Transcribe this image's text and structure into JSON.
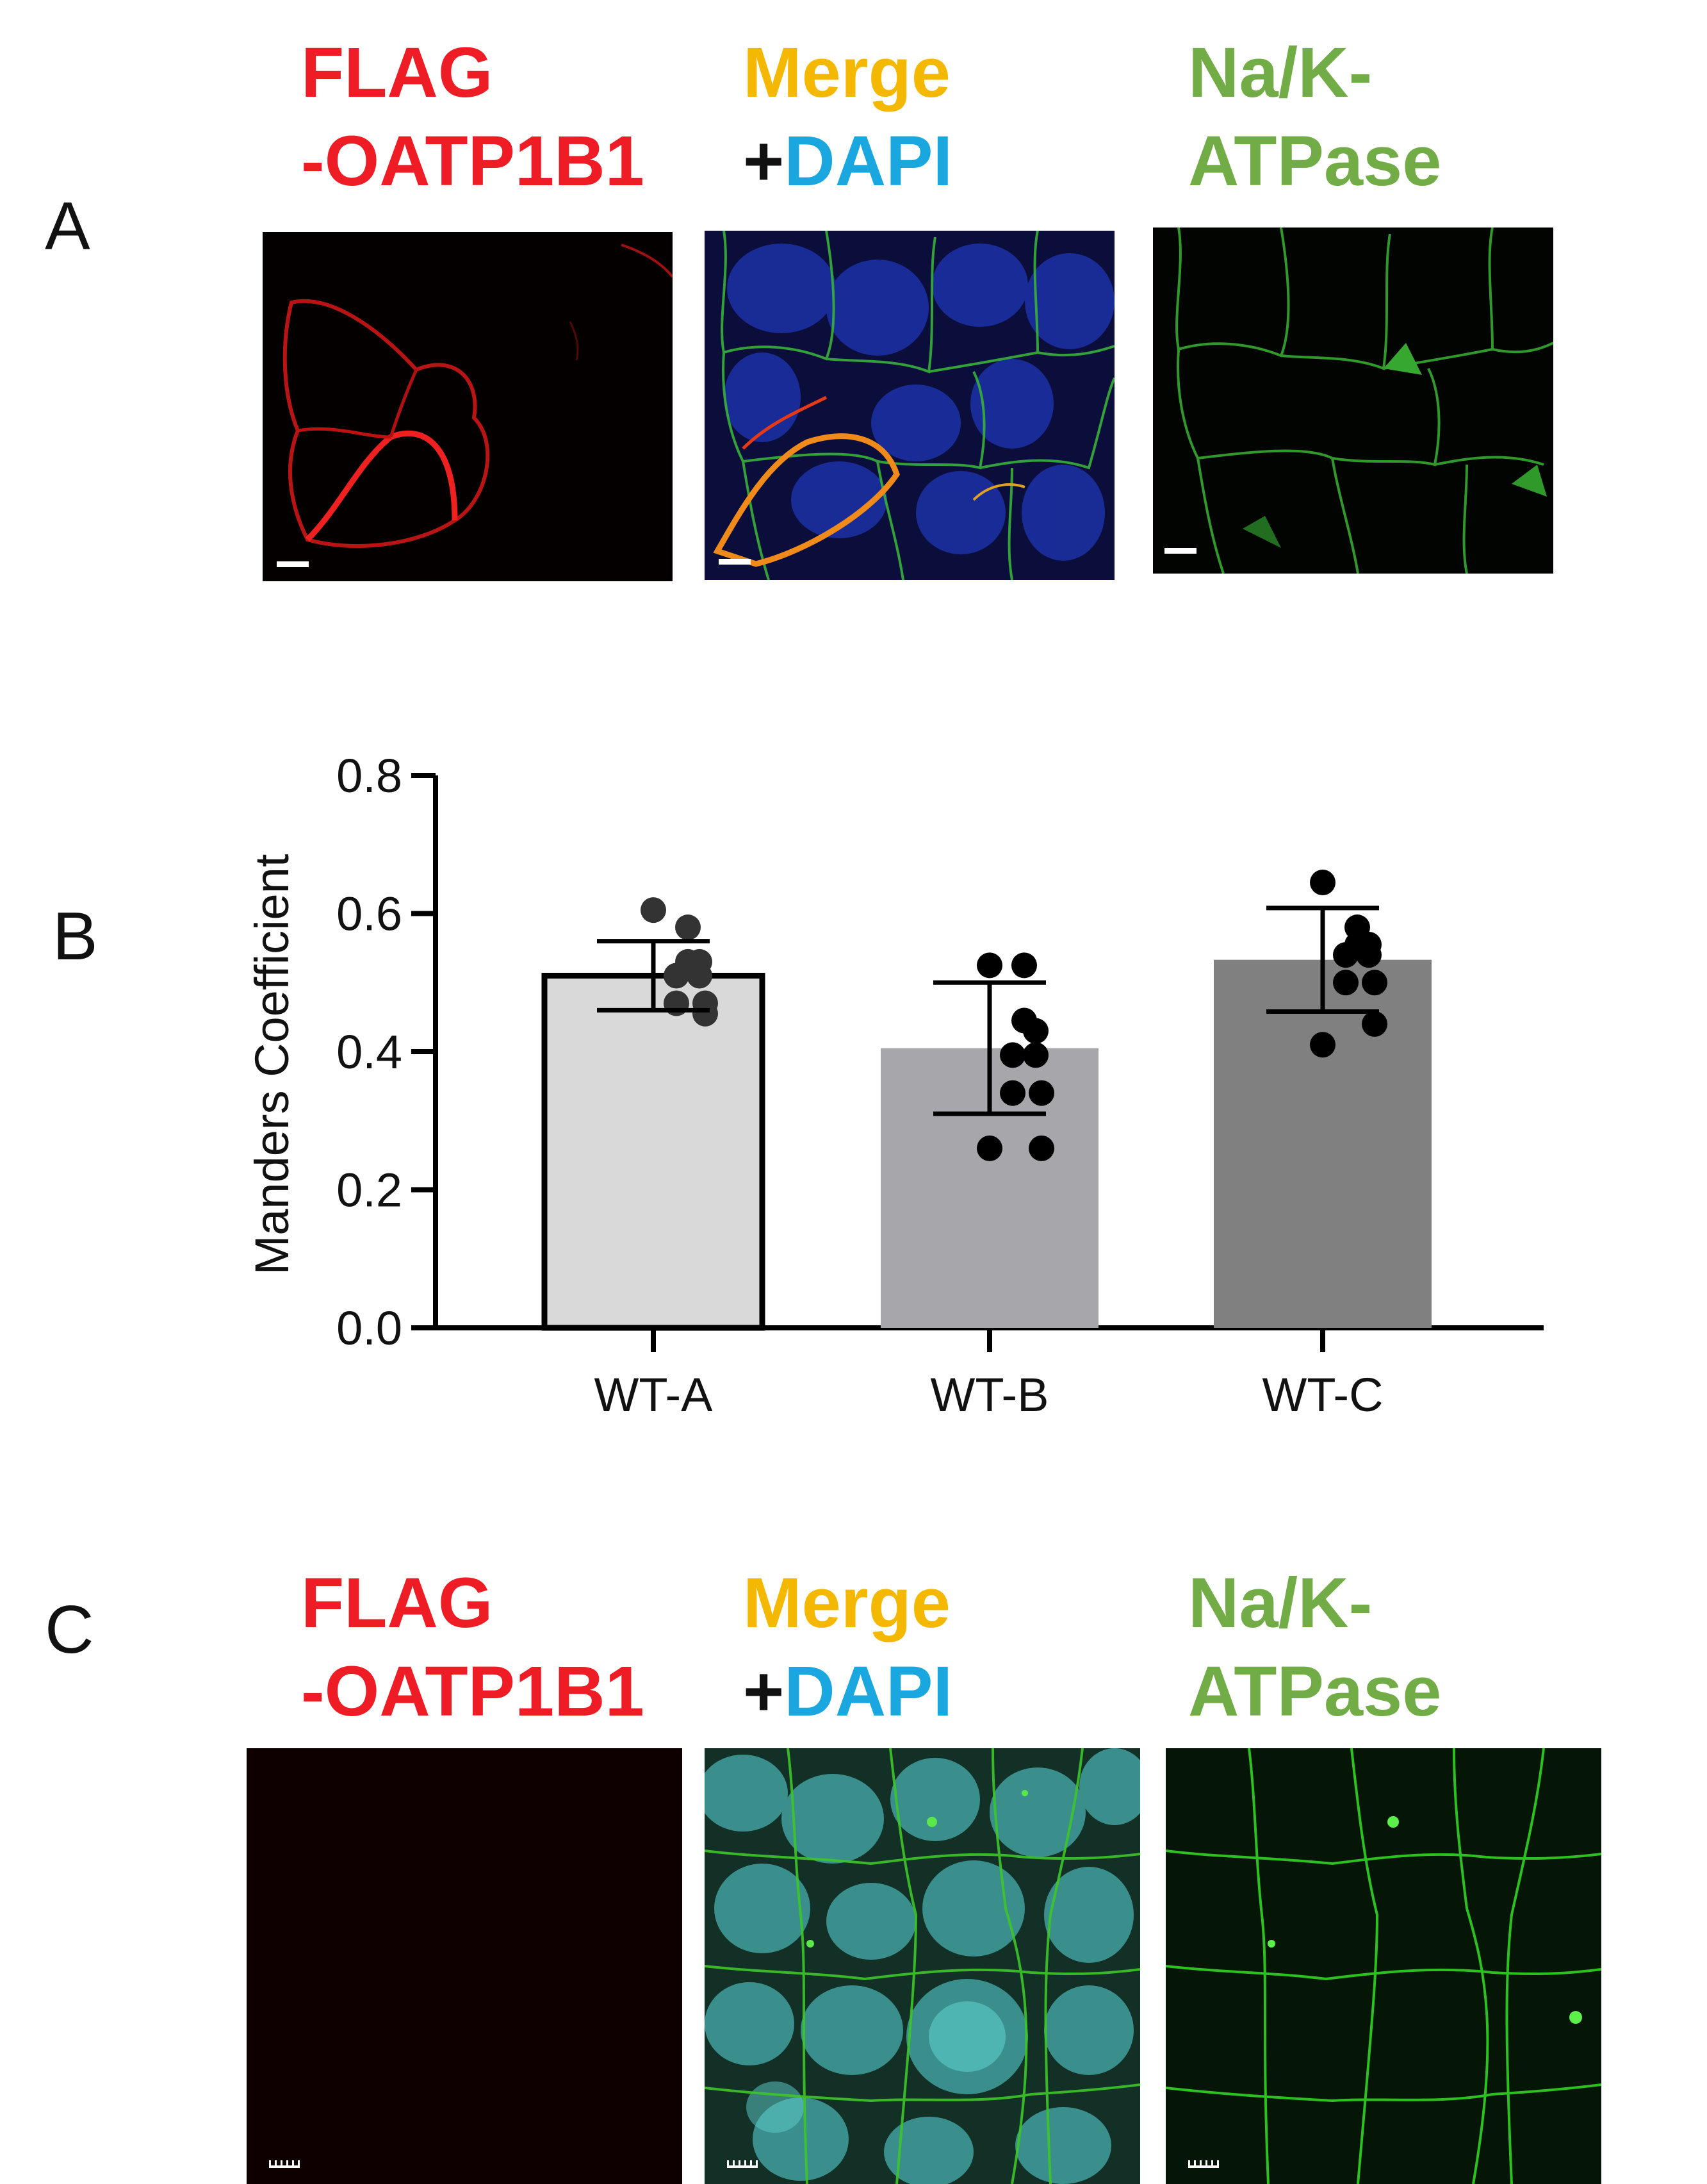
{
  "figure": {
    "panels": [
      {
        "letter": "A",
        "labels": {
          "flag_line1": "FLAG",
          "flag_line2": "-OATP1B1",
          "merge_line1": "Merge",
          "merge_plus": "+",
          "merge_dapi": "DAPI",
          "nak_line1": "Na/K-",
          "nak_line2": "ATPase"
        },
        "images": [
          "flag-red-channel",
          "merge-dapi",
          "nak-atpase-green-channel"
        ]
      },
      {
        "letter": "B"
      },
      {
        "letter": "C",
        "labels": {
          "flag_line1": "FLAG",
          "flag_line2": "-OATP1B1",
          "merge_line1": "Merge",
          "merge_plus": "+",
          "merge_dapi": "DAPI",
          "nak_line1": "Na/K-",
          "nak_line2": "ATPase"
        },
        "images": [
          "flag-red-channel",
          "merge-dapi",
          "nak-atpase-green-channel"
        ]
      }
    ],
    "colors": {
      "flag_red": "#ee1c25",
      "merge_orange": "#f5b800",
      "dapi_blue": "#1aa7e0",
      "nak_green": "#72ac47",
      "text_black": "#111111"
    }
  },
  "chart_data": {
    "type": "bar",
    "categories": [
      "WT-A",
      "WT-B",
      "WT-C"
    ],
    "values": [
      0.51,
      0.405,
      0.533
    ],
    "error_sd": [
      0.05,
      0.095,
      0.075
    ],
    "bar_colors": [
      "#d9d9d9",
      "#a7a7ab",
      "#808080"
    ],
    "bar_outline": [
      true,
      false,
      false
    ],
    "points": [
      [
        0.605,
        0.58,
        0.53,
        0.53,
        0.51,
        0.51,
        0.47,
        0.47,
        0.455
      ],
      [
        0.525,
        0.525,
        0.445,
        0.43,
        0.395,
        0.395,
        0.34,
        0.34,
        0.26,
        0.26
      ],
      [
        0.645,
        0.58,
        0.555,
        0.555,
        0.54,
        0.54,
        0.5,
        0.5,
        0.44,
        0.41
      ]
    ],
    "ylabel": "Manders Coefficient",
    "xlabel": "",
    "ylim": [
      0,
      0.8
    ],
    "yticks": [
      "0.0",
      "0.2",
      "0.4",
      "0.6",
      "0.8"
    ],
    "grid": false
  }
}
